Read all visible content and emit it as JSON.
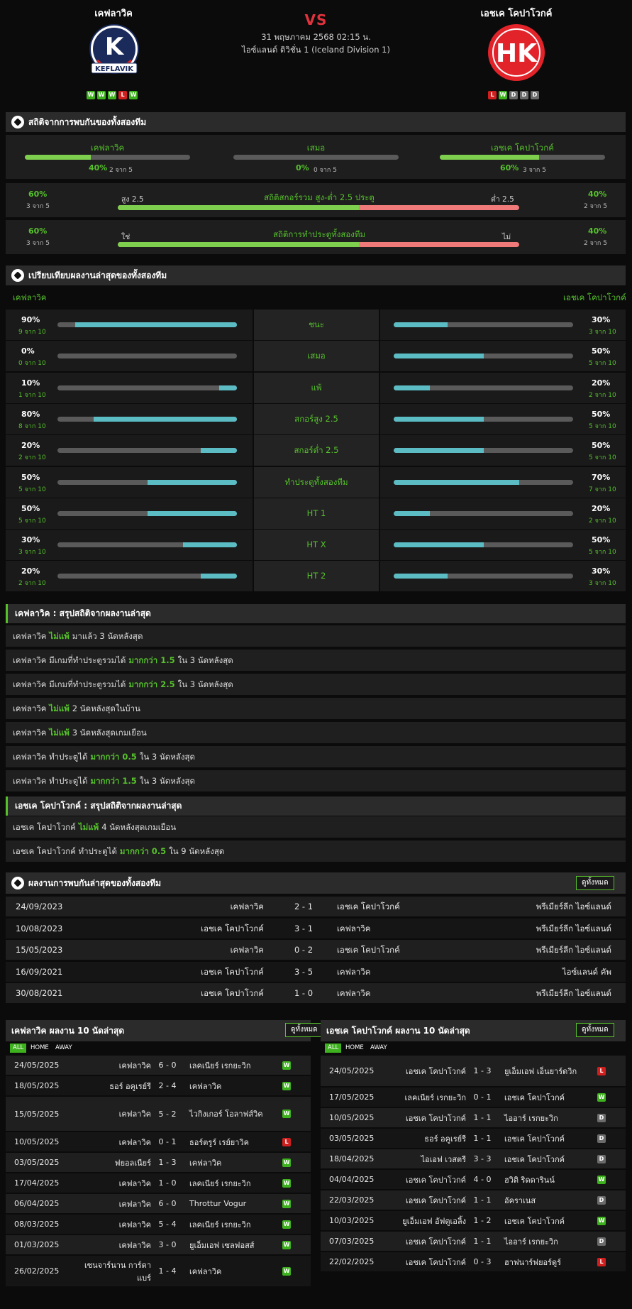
{
  "header": {
    "home": "เคฟลาวิค",
    "away": "เอชเค โคปาโวกค์",
    "vs": "VS",
    "datetime": "31 พฤษภาคม 2568 02:15 น.",
    "league": "ไอซ์แลนด์ ดิวิชั่น 1 (Iceland Division 1)",
    "home_logo_text": "KEFLAVIK",
    "away_logo_text": "HK",
    "home_form": [
      "W",
      "W",
      "W",
      "L",
      "W"
    ],
    "away_form": [
      "L",
      "W",
      "D",
      "D",
      "D"
    ]
  },
  "h2h_stats": {
    "title": "สถิติจากการพบกันของทั้งสองทีม",
    "home_label": "เคฟลาวิค",
    "home_pct": "40%",
    "home_sub": "2 จาก 5",
    "home_val": 40,
    "draw_label": "เสมอ",
    "draw_pct": "0%",
    "draw_sub": "0 จาก 5",
    "draw_val": 0,
    "away_label": "เอชเค โคปาโวกค์",
    "away_pct": "60%",
    "away_sub": "3 จาก 5",
    "away_val": 60,
    "ou": {
      "title": "สถิติสกอร์รวม สูง-ต่ำ 2.5 ประตู",
      "left_pct": "60%",
      "left_sub": "3 จาก 5",
      "left_lbl": "สูง 2.5",
      "right_pct": "40%",
      "right_sub": "2 จาก 5",
      "right_lbl": "ต่ำ 2.5",
      "val": 60
    },
    "btts": {
      "title": "สถิติการทำประตูทั้งสองทีม",
      "left_pct": "60%",
      "left_sub": "3 จาก 5",
      "left_lbl": "ใช่",
      "right_pct": "40%",
      "right_sub": "2 จาก 5",
      "right_lbl": "ไม่",
      "val": 60
    }
  },
  "compare": {
    "title": "เปรียบเทียบผลงานล่าสุดของทั้งสองทีม",
    "home": "เคฟลาวิค",
    "away": "เอชเค โคปาโวกค์",
    "rows": [
      {
        "label": "ชนะ",
        "h_pct": "90%",
        "h_sub": "9 จาก 10",
        "h": 90,
        "a_pct": "30%",
        "a_sub": "3 จาก 10",
        "a": 30
      },
      {
        "label": "เสมอ",
        "h_pct": "0%",
        "h_sub": "0 จาก 10",
        "h": 0,
        "a_pct": "50%",
        "a_sub": "5 จาก 10",
        "a": 50
      },
      {
        "label": "แพ้",
        "h_pct": "10%",
        "h_sub": "1 จาก 10",
        "h": 10,
        "a_pct": "20%",
        "a_sub": "2 จาก 10",
        "a": 20
      },
      {
        "label": "สกอร์สูง 2.5",
        "h_pct": "80%",
        "h_sub": "8 จาก 10",
        "h": 80,
        "a_pct": "50%",
        "a_sub": "5 จาก 10",
        "a": 50
      },
      {
        "label": "สกอร์ต่ำ 2.5",
        "h_pct": "20%",
        "h_sub": "2 จาก 10",
        "h": 20,
        "a_pct": "50%",
        "a_sub": "5 จาก 10",
        "a": 50
      },
      {
        "label": "ทำประตูทั้งสองทีม",
        "h_pct": "50%",
        "h_sub": "5 จาก 10",
        "h": 50,
        "a_pct": "70%",
        "a_sub": "7 จาก 10",
        "a": 70
      },
      {
        "label": "HT 1",
        "h_pct": "50%",
        "h_sub": "5 จาก 10",
        "h": 50,
        "a_pct": "20%",
        "a_sub": "2 จาก 10",
        "a": 20
      },
      {
        "label": "HT X",
        "h_pct": "30%",
        "h_sub": "3 จาก 10",
        "h": 30,
        "a_pct": "50%",
        "a_sub": "5 จาก 10",
        "a": 50
      },
      {
        "label": "HT 2",
        "h_pct": "20%",
        "h_sub": "2 จาก 10",
        "h": 20,
        "a_pct": "30%",
        "a_sub": "3 จาก 10",
        "a": 30
      }
    ]
  },
  "home_summary": {
    "title": "เคฟลาวิค : สรุปสถิติจากผลงานล่าสุด",
    "rows": [
      [
        "เคฟลาวิค",
        "ไม่แพ้",
        "มาแล้ว 3 นัดหลังสุด"
      ],
      [
        "เคฟลาวิค มีเกมที่ทำประตูรวมได้",
        "มากกว่า 1.5",
        "ใน 3 นัดหลังสุด"
      ],
      [
        "เคฟลาวิค มีเกมที่ทำประตูรวมได้",
        "มากกว่า 2.5",
        "ใน 3 นัดหลังสุด"
      ],
      [
        "เคฟลาวิค",
        "ไม่แพ้",
        "2 นัดหลังสุดในบ้าน"
      ],
      [
        "เคฟลาวิค",
        "ไม่แพ้",
        "3 นัดหลังสุดเกมเยือน"
      ],
      [
        "เคฟลาวิค ทำประตูได้",
        "มากกว่า 0.5",
        "ใน 3 นัดหลังสุด"
      ],
      [
        "เคฟลาวิค ทำประตูได้",
        "มากกว่า 1.5",
        "ใน 3 นัดหลังสุด"
      ]
    ]
  },
  "away_summary": {
    "title": "เอชเค โคปาโวกค์ : สรุปสถิติจากผลงานล่าสุด",
    "rows": [
      [
        "เอชเค โคปาโวกค์",
        "ไม่แพ้",
        "4 นัดหลังสุดเกมเยือน"
      ],
      [
        "เอชเค โคปาโวกค์ ทำประตูได้",
        "มากกว่า 0.5",
        "ใน 9 นัดหลังสุด"
      ]
    ]
  },
  "h2h": {
    "title": "ผลงานการพบกันล่าสุดของทั้งสองทีม",
    "view_all": "ดูทั้งหมด",
    "rows": [
      [
        "24/09/2023",
        "เคฟลาวิค",
        "2 - 1",
        "เอชเค โคปาโวกค์",
        "พรีเมียร์ลีก ไอซ์แลนด์"
      ],
      [
        "10/08/2023",
        "เอชเค โคปาโวกค์",
        "3 - 1",
        "เคฟลาวิค",
        "พรีเมียร์ลีก ไอซ์แลนด์"
      ],
      [
        "15/05/2023",
        "เคฟลาวิค",
        "0 - 2",
        "เอชเค โคปาโวกค์",
        "พรีเมียร์ลีก ไอซ์แลนด์"
      ],
      [
        "16/09/2021",
        "เอชเค โคปาโวกค์",
        "3 - 5",
        "เคฟลาวิค",
        "ไอซ์แลนด์ คัพ"
      ],
      [
        "30/08/2021",
        "เอชเค โคปาโวกค์",
        "1 - 0",
        "เคฟลาวิค",
        "พรีเมียร์ลีก ไอซ์แลนด์"
      ]
    ]
  },
  "home_last": {
    "title": "เคฟลาวิค ผลงาน 10 นัดล่าสุด",
    "view_all": "ดูทั้งหมด",
    "tabs": [
      "ALL",
      "HOME",
      "AWAY"
    ],
    "rows": [
      [
        "24/05/2025",
        "เคฟลาวิค",
        "6 - 0",
        "เลคเนียร์ เรกยะวิก",
        "W"
      ],
      [
        "18/05/2025",
        "ธอร์ อคูเรย์รี",
        "2 - 4",
        "เคฟลาวิค",
        "W"
      ],
      [
        "15/05/2025",
        "เคฟลาวิค",
        "5 - 2",
        "ไวกิงเกอร์ โอลาฟส์วิค",
        "W"
      ],
      [
        "10/05/2025",
        "เคฟลาวิค",
        "0 - 1",
        "ธอร์ตรูร์ เรย์ยาวิค",
        "L"
      ],
      [
        "03/05/2025",
        "ฟยอลเนียร์",
        "1 - 3",
        "เคฟลาวิค",
        "W"
      ],
      [
        "17/04/2025",
        "เคฟลาวิค",
        "1 - 0",
        "เลคเนียร์ เรกยะวิก",
        "W"
      ],
      [
        "06/04/2025",
        "เคฟลาวิค",
        "6 - 0",
        "Throttur Vogur",
        "W"
      ],
      [
        "08/03/2025",
        "เคฟลาวิค",
        "5 - 4",
        "เลคเนียร์ เรกยะวิก",
        "W"
      ],
      [
        "01/03/2025",
        "เคฟลาวิค",
        "3 - 0",
        "ยูเอ็มเอฟ เซลฟอสส์",
        "W"
      ],
      [
        "26/02/2025",
        "เซนจาร์นาน การ์ดาแบร์",
        "1 - 4",
        "เคฟลาวิค",
        "W"
      ]
    ]
  },
  "away_last": {
    "title": "เอชเค โคปาโวกค์ ผลงาน 10 นัดล่าสุด",
    "view_all": "ดูทั้งหมด",
    "tabs": [
      "ALL",
      "HOME",
      "AWAY"
    ],
    "rows": [
      [
        "24/05/2025",
        "เอชเค โคปาโวกค์",
        "1 - 3",
        "ยูเอ็มเอฟ เอ็นยาร์ดวิก",
        "L"
      ],
      [
        "17/05/2025",
        "เลคเนียร์ เรกยะวิก",
        "0 - 1",
        "เอชเค โคปาโวกค์",
        "W"
      ],
      [
        "10/05/2025",
        "เอชเค โคปาโวกค์",
        "1 - 1",
        "ไออาร์ เรกยะวิก",
        "D"
      ],
      [
        "03/05/2025",
        "ธอร์ อคูเรย์รี",
        "1 - 1",
        "เอชเค โคปาโวกค์",
        "D"
      ],
      [
        "18/04/2025",
        "ไอเอฟ เวสตรี",
        "3 - 3",
        "เอชเค โคปาโวกค์",
        "D"
      ],
      [
        "04/04/2025",
        "เอชเค โคปาโวกค์",
        "4 - 0",
        "ฮวิติ ริดดารินน์",
        "W"
      ],
      [
        "22/03/2025",
        "เอชเค โคปาโวกค์",
        "1 - 1",
        "อัคราเนส",
        "D"
      ],
      [
        "10/03/2025",
        "ยูเอ็มเอฟ อัฟตูเอลิ้ง",
        "1 - 2",
        "เอชเค โคปาโวกค์",
        "W"
      ],
      [
        "07/03/2025",
        "เอชเค โคปาโวกค์",
        "1 - 1",
        "ไออาร์ เรกยะวิก",
        "D"
      ],
      [
        "22/02/2025",
        "เอชเค โคปาโวกค์",
        "0 - 3",
        "ฮาฟนาร์ฟยอร์ดูร์",
        "L"
      ]
    ]
  },
  "colors": {
    "accent": "#56c12b",
    "teal": "#5bbcc4",
    "red": "#e0323c",
    "over": "#7fcf4e",
    "under": "#f07a7a"
  }
}
